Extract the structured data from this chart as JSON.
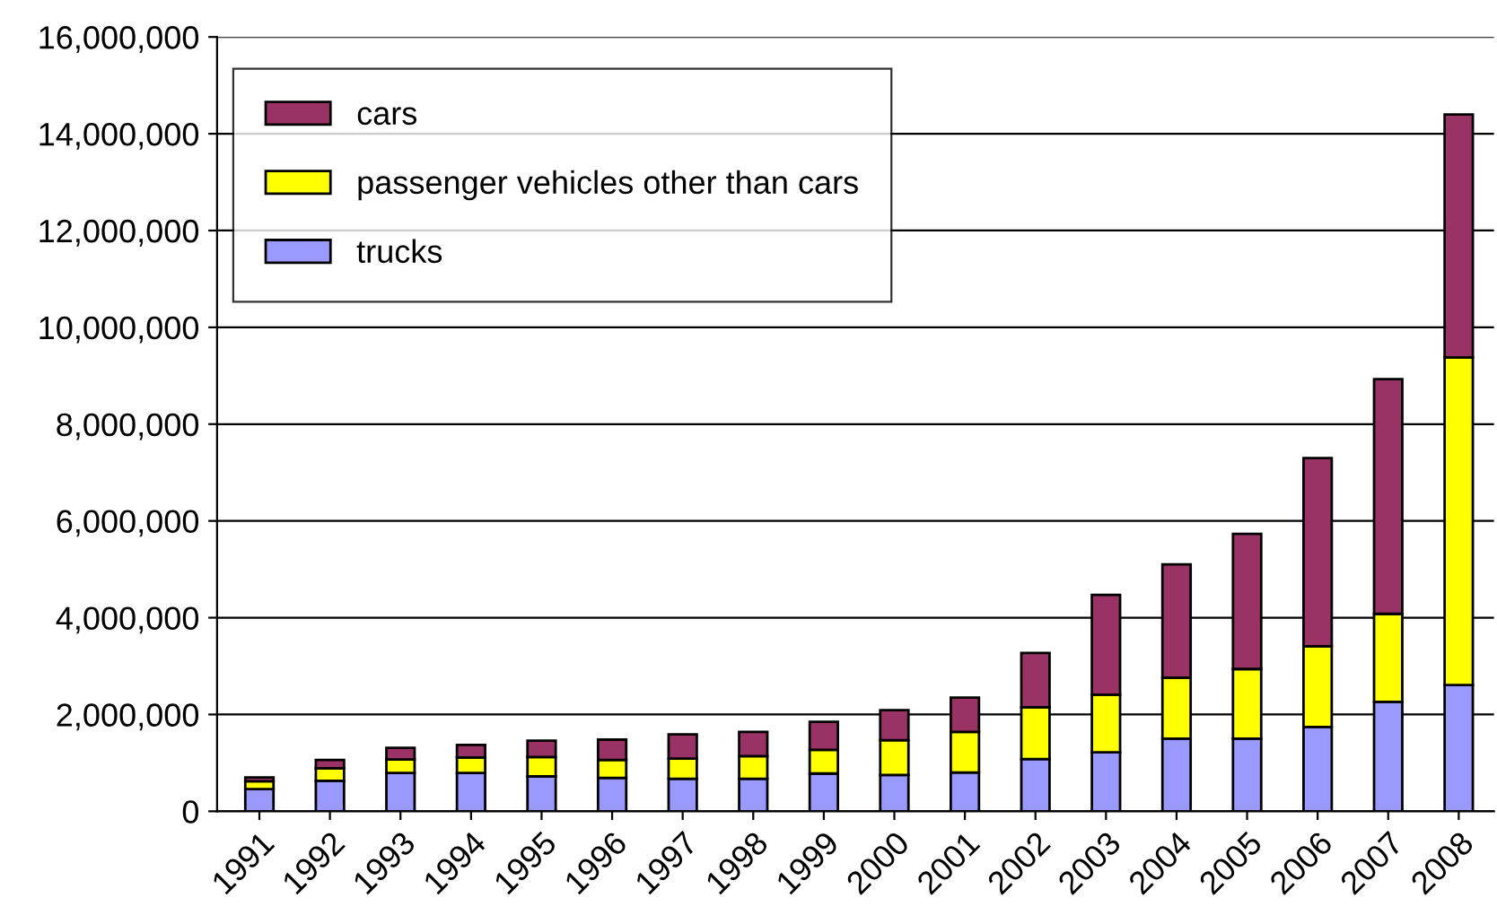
{
  "chart_data": {
    "type": "bar",
    "stacked": true,
    "categories": [
      "1991",
      "1992",
      "1993",
      "1994",
      "1995",
      "1996",
      "1997",
      "1998",
      "1999",
      "2000",
      "2001",
      "2002",
      "2003",
      "2004",
      "2005",
      "2006",
      "2007",
      "2008"
    ],
    "series": [
      {
        "name": "trucks",
        "color": "#9999ff",
        "values": [
          460000,
          630000,
          790000,
          790000,
          720000,
          690000,
          670000,
          670000,
          780000,
          750000,
          800000,
          1080000,
          1220000,
          1500000,
          1500000,
          1740000,
          2260000,
          2610000
        ]
      },
      {
        "name": "passenger vehicles other than cars",
        "color": "#ffff00",
        "values": [
          160000,
          260000,
          280000,
          320000,
          400000,
          370000,
          420000,
          470000,
          490000,
          720000,
          840000,
          1070000,
          1190000,
          1260000,
          1440000,
          1670000,
          1820000,
          6770000
        ]
      },
      {
        "name": "cars",
        "color": "#993366",
        "values": [
          80000,
          170000,
          240000,
          260000,
          340000,
          420000,
          500000,
          500000,
          580000,
          620000,
          710000,
          1120000,
          2060000,
          2340000,
          2790000,
          3890000,
          4850000,
          5020000
        ]
      }
    ],
    "ylim": [
      0,
      16000000
    ],
    "yticks": [
      {
        "value": 0,
        "label": "0"
      },
      {
        "value": 2000000,
        "label": "2,000,000"
      },
      {
        "value": 4000000,
        "label": "4,000,000"
      },
      {
        "value": 6000000,
        "label": "6,000,000"
      },
      {
        "value": 8000000,
        "label": "8,000,000"
      },
      {
        "value": 10000000,
        "label": "10,000,000"
      },
      {
        "value": 12000000,
        "label": "12,000,000"
      },
      {
        "value": 14000000,
        "label": "14,000,000"
      },
      {
        "value": 16000000,
        "label": "16,000,000"
      }
    ],
    "grid": "y",
    "legend": "top left"
  }
}
